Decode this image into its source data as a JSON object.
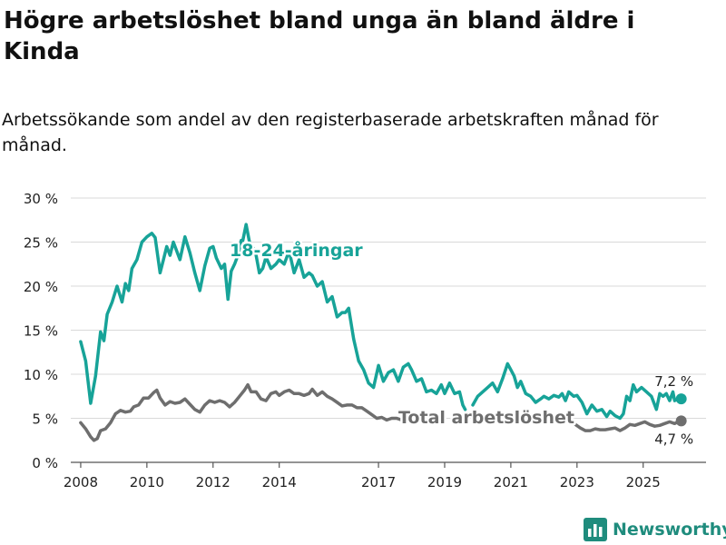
{
  "header": {
    "title": "Högre arbetslöshet bland unga än bland äldre i Kinda",
    "subtitle": "Arbetssökande som andel av den registerbaserade arbetskraften månad för månad."
  },
  "chart_data": {
    "type": "line",
    "title": "Högre arbetslöshet bland unga än bland äldre i Kinda",
    "subtitle": "Arbetssökande som andel av den registerbaserade arbetskraften månad för månad.",
    "xlabel": "",
    "ylabel": "",
    "ylim": [
      0,
      30
    ],
    "xlim": [
      2007.7,
      2026.9
    ],
    "y_ticks": [
      0,
      5,
      10,
      15,
      20,
      25,
      30
    ],
    "y_tick_labels": [
      "0 %",
      "5 %",
      "10 %",
      "15 %",
      "20 %",
      "25 %",
      "30 %"
    ],
    "x_ticks": [
      2008,
      2010,
      2012,
      2014,
      2017,
      2019,
      2021,
      2023,
      2025
    ],
    "x_tick_labels": [
      "2008",
      "2010",
      "2012",
      "2014",
      "2017",
      "2019",
      "2021",
      "2023",
      "2025"
    ],
    "grid": true,
    "series": [
      {
        "name": "18-24-åringar",
        "label": "18-24-åringar",
        "color": "#17a398",
        "last_label": "7,2 %",
        "points": [
          [
            2008.0,
            13.7
          ],
          [
            2008.15,
            11.5
          ],
          [
            2008.3,
            6.7
          ],
          [
            2008.45,
            9.8
          ],
          [
            2008.6,
            14.8
          ],
          [
            2008.7,
            13.8
          ],
          [
            2008.8,
            16.8
          ],
          [
            2008.95,
            18.2
          ],
          [
            2009.1,
            20.0
          ],
          [
            2009.25,
            18.2
          ],
          [
            2009.35,
            20.3
          ],
          [
            2009.45,
            19.5
          ],
          [
            2009.55,
            22.0
          ],
          [
            2009.7,
            23.0
          ],
          [
            2009.85,
            25.0
          ],
          [
            2010.0,
            25.6
          ],
          [
            2010.15,
            26.0
          ],
          [
            2010.25,
            25.5
          ],
          [
            2010.4,
            21.5
          ],
          [
            2010.5,
            23.0
          ],
          [
            2010.6,
            24.5
          ],
          [
            2010.7,
            23.5
          ],
          [
            2010.8,
            25.0
          ],
          [
            2010.9,
            24.0
          ],
          [
            2011.0,
            23.0
          ],
          [
            2011.15,
            25.6
          ],
          [
            2011.3,
            23.8
          ],
          [
            2011.45,
            21.5
          ],
          [
            2011.6,
            19.5
          ],
          [
            2011.75,
            22.3
          ],
          [
            2011.9,
            24.3
          ],
          [
            2012.0,
            24.5
          ],
          [
            2012.1,
            23.2
          ],
          [
            2012.25,
            22.0
          ],
          [
            2012.35,
            22.5
          ],
          [
            2012.45,
            18.5
          ],
          [
            2012.55,
            21.7
          ],
          [
            2012.65,
            22.5
          ],
          [
            2012.75,
            23.5
          ],
          [
            2012.85,
            25.2
          ],
          null,
          [
            2012.9,
            25.2
          ],
          [
            2013.0,
            27.0
          ],
          [
            2013.1,
            25.0
          ],
          [
            2013.2,
            24.5
          ],
          [
            2013.3,
            23.5
          ],
          [
            2013.4,
            21.5
          ],
          [
            2013.5,
            22.0
          ],
          [
            2013.6,
            23.3
          ],
          [
            2013.75,
            22.0
          ],
          [
            2013.9,
            22.5
          ],
          [
            2014.0,
            23.0
          ],
          [
            2014.15,
            22.5
          ],
          [
            2014.3,
            24.0
          ],
          [
            2014.45,
            21.5
          ],
          [
            2014.6,
            23.0
          ],
          [
            2014.75,
            21.0
          ],
          [
            2014.9,
            21.5
          ],
          [
            2015.0,
            21.2
          ],
          [
            2015.15,
            20.0
          ],
          [
            2015.3,
            20.5
          ],
          [
            2015.45,
            18.2
          ],
          [
            2015.6,
            18.8
          ],
          [
            2015.75,
            16.5
          ],
          [
            2015.9,
            17.0
          ],
          [
            2016.0,
            17.0
          ],
          [
            2016.1,
            17.5
          ],
          [
            2016.25,
            14.0
          ],
          [
            2016.4,
            11.5
          ],
          [
            2016.55,
            10.5
          ],
          [
            2016.7,
            9.0
          ],
          [
            2016.85,
            8.5
          ],
          [
            2017.0,
            11.0
          ],
          [
            2017.15,
            9.2
          ],
          [
            2017.3,
            10.2
          ],
          [
            2017.45,
            10.5
          ],
          [
            2017.6,
            9.2
          ],
          [
            2017.75,
            10.8
          ],
          [
            2017.9,
            11.2
          ],
          [
            2018.0,
            10.5
          ],
          [
            2018.15,
            9.2
          ],
          [
            2018.3,
            9.5
          ],
          [
            2018.45,
            8.0
          ],
          [
            2018.6,
            8.2
          ],
          [
            2018.75,
            7.8
          ],
          [
            2018.9,
            8.8
          ],
          [
            2019.0,
            7.8
          ],
          [
            2019.15,
            9.0
          ],
          [
            2019.3,
            7.8
          ],
          [
            2019.45,
            8.0
          ],
          [
            2019.55,
            6.5
          ],
          [
            2019.62,
            6.0
          ],
          null,
          [
            2019.85,
            6.5
          ],
          [
            2020.0,
            7.5
          ],
          [
            2020.15,
            8.0
          ],
          [
            2020.3,
            8.5
          ],
          [
            2020.45,
            9.0
          ],
          [
            2020.6,
            8.0
          ],
          [
            2020.75,
            9.5
          ],
          [
            2020.9,
            11.2
          ],
          [
            2021.0,
            10.5
          ],
          [
            2021.1,
            9.8
          ],
          [
            2021.2,
            8.5
          ],
          [
            2021.3,
            9.2
          ],
          [
            2021.45,
            7.8
          ],
          [
            2021.6,
            7.5
          ],
          [
            2021.75,
            6.8
          ],
          [
            2021.9,
            7.2
          ],
          [
            2022.0,
            7.5
          ],
          [
            2022.15,
            7.2
          ],
          [
            2022.3,
            7.6
          ],
          [
            2022.45,
            7.4
          ],
          [
            2022.55,
            7.8
          ],
          [
            2022.65,
            7.0
          ],
          [
            2022.75,
            8.0
          ],
          [
            2022.9,
            7.5
          ],
          [
            2023.0,
            7.6
          ],
          [
            2023.15,
            6.8
          ],
          [
            2023.3,
            5.5
          ],
          [
            2023.45,
            6.5
          ],
          [
            2023.6,
            5.8
          ],
          [
            2023.75,
            6.0
          ],
          [
            2023.9,
            5.2
          ],
          [
            2024.0,
            5.8
          ],
          [
            2024.15,
            5.3
          ],
          [
            2024.3,
            5.0
          ],
          [
            2024.4,
            5.5
          ],
          [
            2024.5,
            7.5
          ],
          [
            2024.6,
            7.0
          ],
          [
            2024.7,
            8.8
          ],
          [
            2024.8,
            8.0
          ],
          [
            2024.95,
            8.5
          ],
          [
            2025.1,
            8.0
          ],
          [
            2025.25,
            7.5
          ],
          [
            2025.4,
            6.0
          ],
          [
            2025.5,
            7.8
          ],
          [
            2025.6,
            7.5
          ],
          [
            2025.7,
            7.8
          ],
          [
            2025.8,
            7.0
          ],
          [
            2025.9,
            8.0
          ],
          [
            2025.95,
            7.0
          ],
          [
            2026.05,
            7.2
          ],
          [
            2026.15,
            7.2
          ]
        ]
      },
      {
        "name": "Total arbetslöshet",
        "label": "Total arbetslöshet",
        "color": "#6e6e6e",
        "last_label": "4,7 %",
        "points": [
          [
            2008.0,
            4.5
          ],
          [
            2008.15,
            3.8
          ],
          [
            2008.3,
            2.9
          ],
          [
            2008.4,
            2.5
          ],
          [
            2008.5,
            2.7
          ],
          [
            2008.6,
            3.6
          ],
          [
            2008.75,
            3.8
          ],
          [
            2008.9,
            4.5
          ],
          [
            2009.05,
            5.5
          ],
          [
            2009.2,
            5.9
          ],
          [
            2009.35,
            5.7
          ],
          [
            2009.5,
            5.8
          ],
          [
            2009.6,
            6.3
          ],
          [
            2009.75,
            6.5
          ],
          [
            2009.9,
            7.3
          ],
          [
            2010.05,
            7.3
          ],
          [
            2010.2,
            7.9
          ],
          [
            2010.3,
            8.2
          ],
          [
            2010.4,
            7.3
          ],
          [
            2010.55,
            6.5
          ],
          [
            2010.7,
            6.9
          ],
          [
            2010.85,
            6.7
          ],
          [
            2011.0,
            6.8
          ],
          [
            2011.15,
            7.2
          ],
          [
            2011.3,
            6.6
          ],
          [
            2011.45,
            6.0
          ],
          [
            2011.6,
            5.7
          ],
          [
            2011.75,
            6.5
          ],
          [
            2011.9,
            7.0
          ],
          [
            2012.05,
            6.8
          ],
          [
            2012.2,
            7.0
          ],
          [
            2012.35,
            6.8
          ],
          [
            2012.5,
            6.3
          ],
          [
            2012.65,
            6.8
          ],
          [
            2012.8,
            7.5
          ],
          [
            2012.95,
            8.2
          ],
          [
            2013.05,
            8.8
          ],
          [
            2013.15,
            8.0
          ],
          [
            2013.3,
            8.0
          ],
          [
            2013.45,
            7.2
          ],
          [
            2013.6,
            7.0
          ],
          [
            2013.75,
            7.8
          ],
          [
            2013.9,
            8.0
          ],
          [
            2014.0,
            7.6
          ],
          [
            2014.15,
            8.0
          ],
          [
            2014.3,
            8.2
          ],
          [
            2014.45,
            7.8
          ],
          [
            2014.6,
            7.8
          ],
          [
            2014.75,
            7.6
          ],
          [
            2014.9,
            7.8
          ],
          [
            2015.0,
            8.3
          ],
          [
            2015.15,
            7.6
          ],
          [
            2015.3,
            8.0
          ],
          [
            2015.45,
            7.5
          ],
          [
            2015.6,
            7.2
          ],
          [
            2015.75,
            6.8
          ],
          [
            2015.9,
            6.4
          ],
          [
            2016.05,
            6.5
          ],
          [
            2016.2,
            6.5
          ],
          [
            2016.35,
            6.2
          ],
          [
            2016.5,
            6.2
          ],
          [
            2016.65,
            5.8
          ],
          [
            2016.8,
            5.4
          ],
          [
            2016.95,
            5.0
          ],
          [
            2017.1,
            5.1
          ],
          [
            2017.25,
            4.8
          ],
          [
            2017.4,
            5.0
          ],
          [
            2017.55,
            5.0
          ],
          [
            2017.7,
            4.8
          ],
          null,
          [
            2019.95,
            4.5
          ],
          [
            2020.1,
            4.8
          ],
          null,
          [
            2022.65,
            4.8
          ],
          [
            2022.8,
            4.6
          ],
          [
            2022.95,
            4.3
          ],
          [
            2023.1,
            3.9
          ],
          [
            2023.25,
            3.6
          ],
          [
            2023.4,
            3.6
          ],
          [
            2023.55,
            3.8
          ],
          [
            2023.7,
            3.7
          ],
          [
            2023.85,
            3.7
          ],
          [
            2024.0,
            3.8
          ],
          [
            2024.15,
            3.9
          ],
          [
            2024.3,
            3.6
          ],
          [
            2024.45,
            3.9
          ],
          [
            2024.6,
            4.3
          ],
          [
            2024.75,
            4.2
          ],
          [
            2024.9,
            4.4
          ],
          [
            2025.05,
            4.6
          ],
          [
            2025.2,
            4.3
          ],
          [
            2025.35,
            4.1
          ],
          [
            2025.5,
            4.2
          ],
          [
            2025.65,
            4.4
          ],
          [
            2025.8,
            4.6
          ],
          [
            2025.95,
            4.4
          ],
          [
            2026.05,
            4.6
          ],
          [
            2026.15,
            4.7
          ]
        ]
      }
    ]
  },
  "footer": {
    "brand": "Newsworthy",
    "logo_icon": "bar-chart-icon",
    "brand_color": "#1f8c7d"
  }
}
